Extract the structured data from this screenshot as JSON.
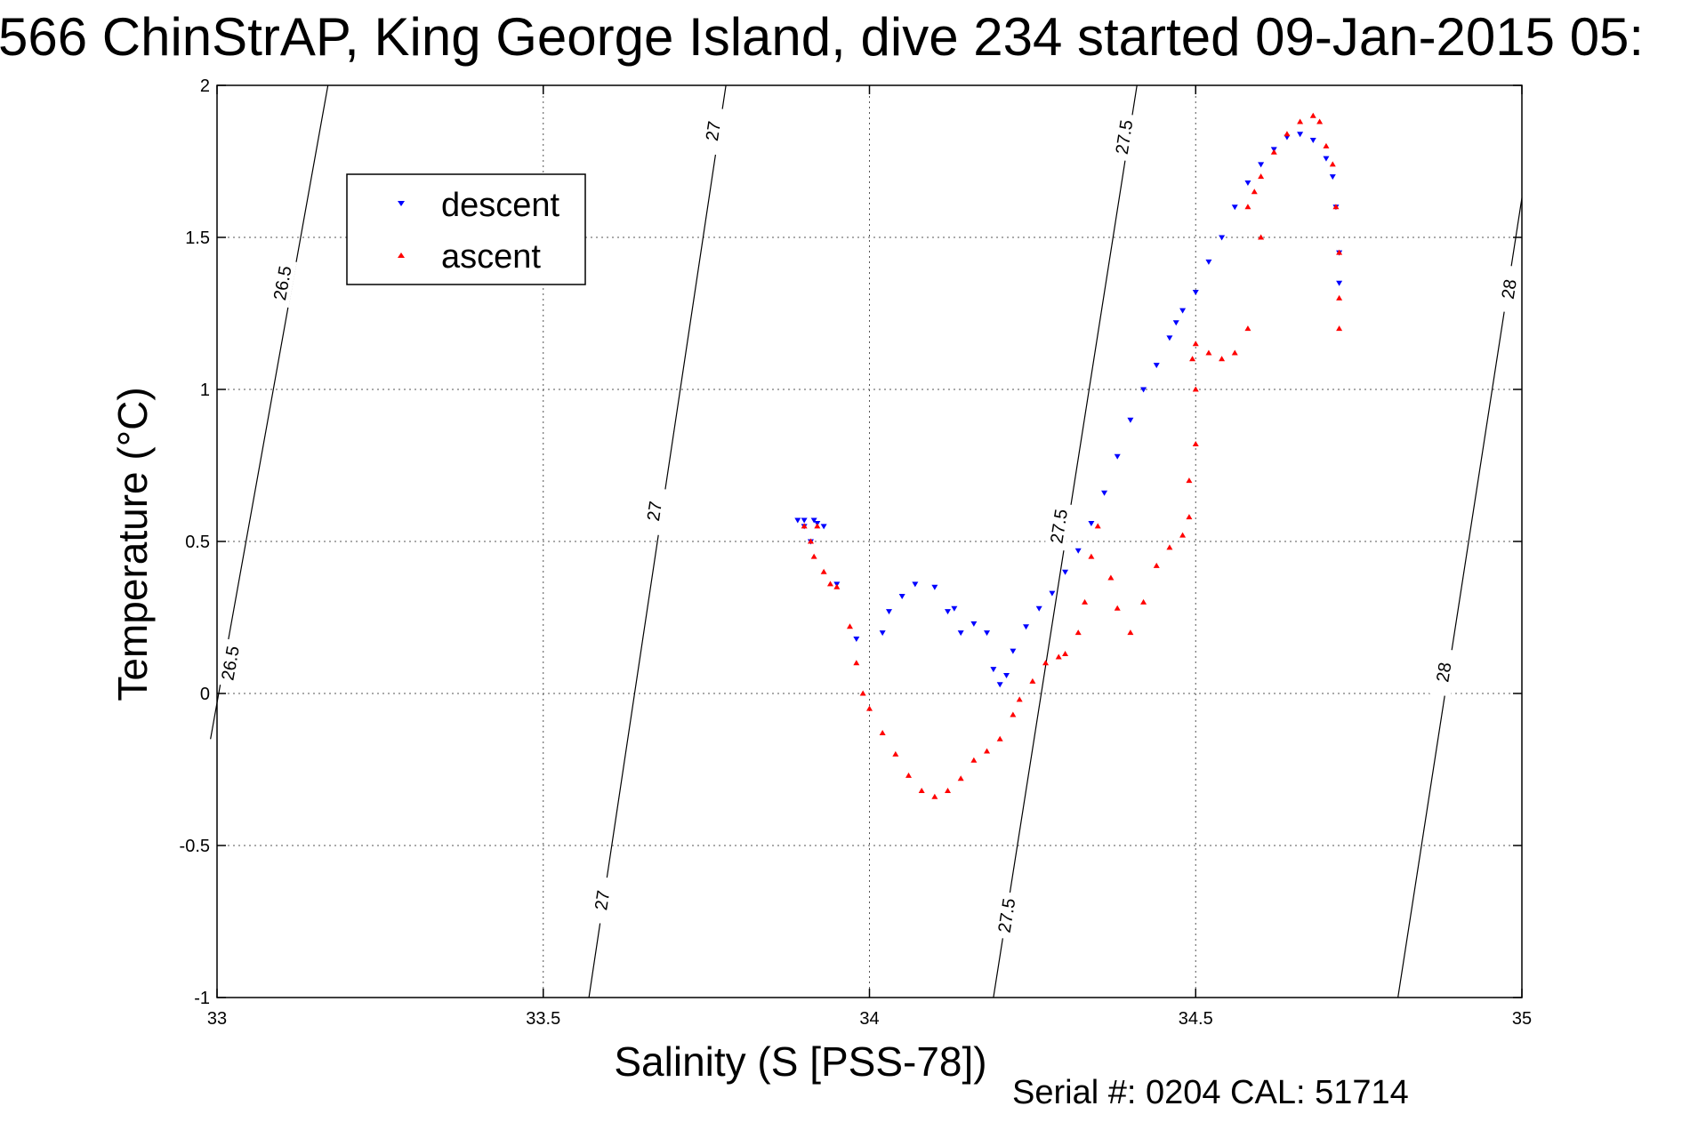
{
  "title": "566 ChinStrAP, King George Island, dive 234 started 09-Jan-2015 05:",
  "footer": "Serial #: 0204  CAL: 51714",
  "colors": {
    "descent": "#0000ff",
    "ascent": "#ff0000",
    "axes": "#000000"
  },
  "chart_data": {
    "type": "scatter",
    "xlabel": "Salinity (S [PSS-78])",
    "ylabel": "Temperature (°C)",
    "xlim": [
      33,
      35
    ],
    "ylim": [
      -1,
      2
    ],
    "xticks": [
      "33",
      "33.5",
      "34",
      "34.5",
      "35"
    ],
    "yticks": [
      "-1",
      "-0.5",
      "0",
      "0.5",
      "1",
      "1.5",
      "2"
    ],
    "grid": true,
    "legend": {
      "placement": "upper-left",
      "entries": [
        "descent",
        "ascent"
      ]
    },
    "isopycnals": [
      {
        "label": "26.5",
        "from": [
          32.99,
          -0.15
        ],
        "to": [
          33.17,
          2.0
        ],
        "label_positions": [
          [
            33.02,
            0.1
          ],
          [
            33.1,
            1.35
          ]
        ]
      },
      {
        "label": "27",
        "from": [
          33.57,
          -1.0
        ],
        "to": [
          33.78,
          2.0
        ],
        "label_positions": [
          [
            33.59,
            -0.68
          ],
          [
            33.67,
            0.6
          ],
          [
            33.76,
            1.85
          ]
        ]
      },
      {
        "label": "27.5",
        "from": [
          34.19,
          -1.0
        ],
        "to": [
          34.41,
          2.0
        ],
        "label_positions": [
          [
            34.21,
            -0.73
          ],
          [
            34.29,
            0.55
          ],
          [
            34.39,
            1.83
          ]
        ]
      },
      {
        "label": "28",
        "from": [
          34.81,
          -1.0
        ],
        "to": [
          35.0,
          1.63
        ],
        "label_positions": [
          [
            34.88,
            0.07
          ],
          [
            34.98,
            1.33
          ]
        ]
      }
    ],
    "series": [
      {
        "name": "descent",
        "marker": "triangle-down",
        "x": [
          33.89,
          33.9,
          33.9,
          33.91,
          33.915,
          33.92,
          33.93,
          33.95,
          33.98,
          34.02,
          34.03,
          34.05,
          34.07,
          34.1,
          34.12,
          34.13,
          34.14,
          34.16,
          34.18,
          34.19,
          34.2,
          34.21,
          34.22,
          34.24,
          34.26,
          34.28,
          34.3,
          34.32,
          34.34,
          34.36,
          34.38,
          34.4,
          34.42,
          34.44,
          34.46,
          34.47,
          34.48,
          34.5,
          34.52,
          34.54,
          34.56,
          34.58,
          34.6,
          34.62,
          34.64,
          34.66,
          34.68,
          34.7,
          34.71,
          34.715,
          34.72,
          34.72
        ],
        "y": [
          0.57,
          0.57,
          0.55,
          0.5,
          0.57,
          0.56,
          0.55,
          0.36,
          0.18,
          0.2,
          0.27,
          0.32,
          0.36,
          0.35,
          0.27,
          0.28,
          0.2,
          0.23,
          0.2,
          0.08,
          0.03,
          0.06,
          0.14,
          0.22,
          0.28,
          0.33,
          0.4,
          0.47,
          0.56,
          0.66,
          0.78,
          0.9,
          1.0,
          1.08,
          1.17,
          1.22,
          1.26,
          1.32,
          1.42,
          1.5,
          1.6,
          1.68,
          1.74,
          1.79,
          1.83,
          1.84,
          1.82,
          1.76,
          1.7,
          1.6,
          1.45,
          1.35
        ]
      },
      {
        "name": "ascent",
        "marker": "triangle-up",
        "x": [
          33.9,
          33.91,
          33.915,
          33.92,
          33.93,
          33.94,
          33.95,
          33.97,
          33.98,
          33.99,
          34.0,
          34.02,
          34.04,
          34.06,
          34.08,
          34.1,
          34.12,
          34.14,
          34.16,
          34.18,
          34.2,
          34.22,
          34.23,
          34.25,
          34.27,
          34.29,
          34.3,
          34.32,
          34.33,
          34.34,
          34.35,
          34.37,
          34.38,
          34.4,
          34.42,
          34.44,
          34.46,
          34.48,
          34.49,
          34.5,
          34.5,
          34.49,
          34.495,
          34.5,
          34.52,
          34.54,
          34.56,
          34.58,
          34.6,
          34.58,
          34.59,
          34.6,
          34.62,
          34.64,
          34.66,
          34.68,
          34.69,
          34.7,
          34.71,
          34.715,
          34.72,
          34.72,
          34.72
        ],
        "y": [
          0.55,
          0.5,
          0.45,
          0.55,
          0.4,
          0.36,
          0.35,
          0.22,
          0.1,
          0.0,
          -0.05,
          -0.13,
          -0.2,
          -0.27,
          -0.32,
          -0.34,
          -0.32,
          -0.28,
          -0.22,
          -0.19,
          -0.15,
          -0.07,
          -0.02,
          0.04,
          0.1,
          0.12,
          0.13,
          0.2,
          0.3,
          0.45,
          0.55,
          0.38,
          0.28,
          0.2,
          0.3,
          0.42,
          0.48,
          0.52,
          0.58,
          0.82,
          1.0,
          0.7,
          1.1,
          1.15,
          1.12,
          1.1,
          1.12,
          1.2,
          1.5,
          1.6,
          1.65,
          1.7,
          1.78,
          1.84,
          1.88,
          1.9,
          1.88,
          1.8,
          1.74,
          1.6,
          1.45,
          1.3,
          1.2
        ]
      }
    ]
  }
}
